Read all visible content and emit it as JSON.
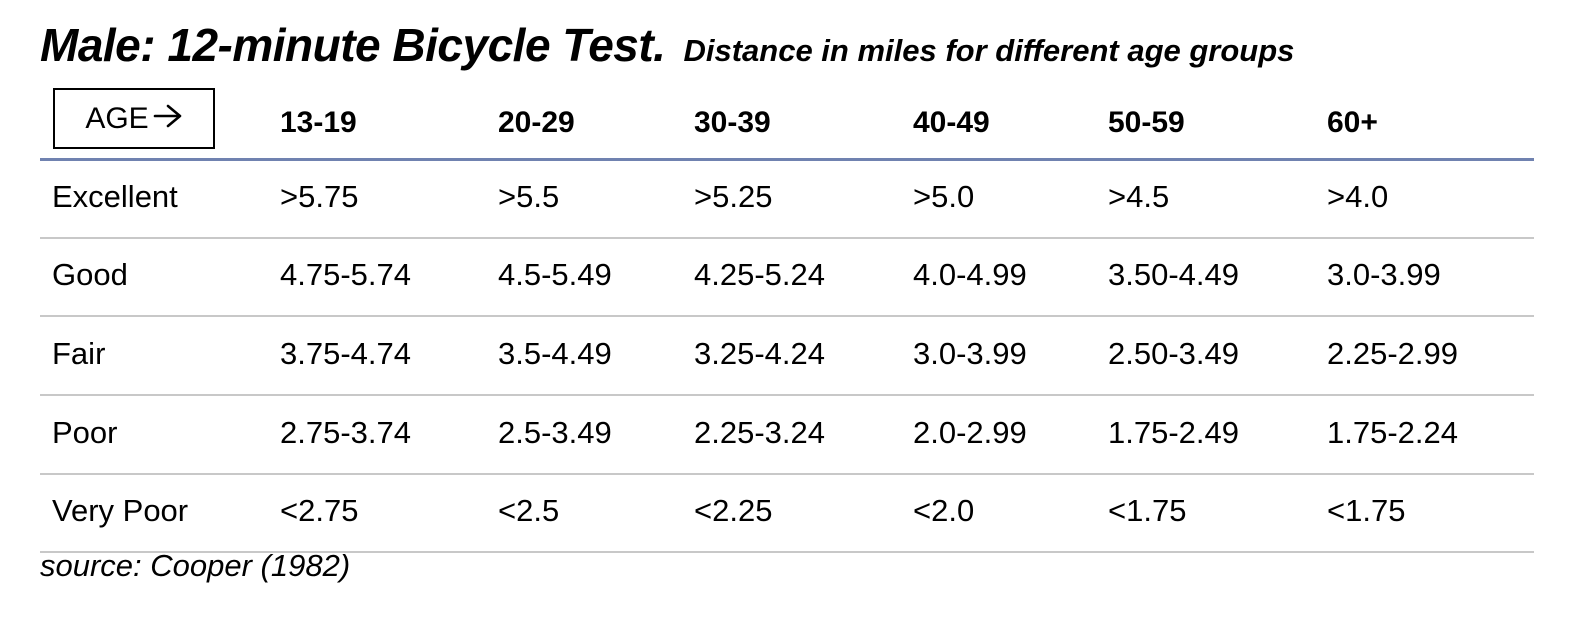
{
  "title": {
    "main": "Male:  12-minute Bicycle Test.",
    "subtitle": "Distance in miles for different age groups"
  },
  "age_box": {
    "label": "AGE",
    "arrow_icon": "arrow-right-icon"
  },
  "columns": [
    "13-19",
    "20-29",
    "30-39",
    "40-49",
    "50-59",
    "60+"
  ],
  "rows": [
    {
      "label": "Excellent",
      "values": [
        ">5.75",
        ">5.5",
        ">5.25",
        ">5.0",
        ">4.5",
        ">4.0"
      ]
    },
    {
      "label": "Good",
      "values": [
        "4.75-5.74",
        "4.5-5.49",
        "4.25-5.24",
        "4.0-4.99",
        "3.50-4.49",
        "3.0-3.99"
      ]
    },
    {
      "label": "Fair",
      "values": [
        "3.75-4.74",
        "3.5-4.49",
        "3.25-4.24",
        "3.0-3.99",
        "2.50-3.49",
        "2.25-2.99"
      ]
    },
    {
      "label": "Poor",
      "values": [
        "2.75-3.74",
        "2.5-3.49",
        "2.25-3.24",
        "2.0-2.99",
        "1.75-2.49",
        "1.75-2.24"
      ]
    },
    {
      "label": "Very Poor",
      "values": [
        "<2.75",
        "<2.5",
        "<2.25",
        "<2.0",
        "<1.75",
        "<1.75"
      ]
    }
  ],
  "source": "source: Cooper (1982)",
  "colors": {
    "header_rule": "#7082b0",
    "row_rule": "#c8c8c8"
  }
}
